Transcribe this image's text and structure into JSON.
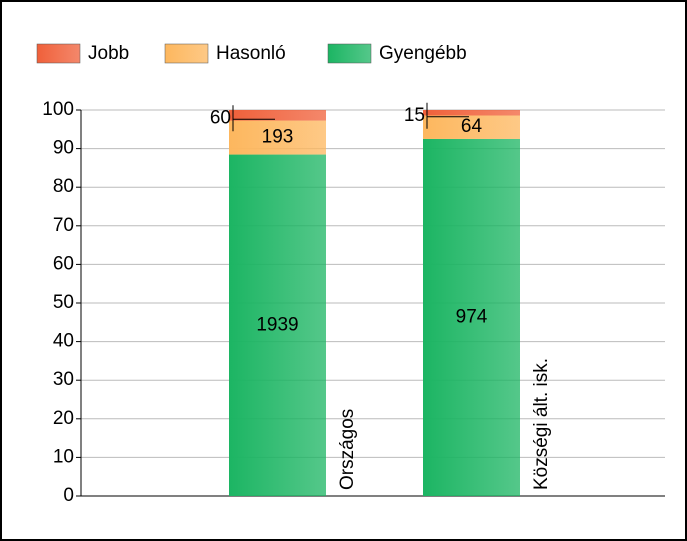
{
  "chart_data": {
    "type": "bar",
    "stacking": "percent",
    "categories": [
      "Országos",
      "Községi ált. isk."
    ],
    "series": [
      {
        "name": "Jobb",
        "color": "#f0603a",
        "values": [
          60,
          15
        ]
      },
      {
        "name": "Hasonló",
        "color": "#fdb75e",
        "values": [
          193,
          64
        ]
      },
      {
        "name": "Gyengébb",
        "color": "#1cb563",
        "values": [
          1939,
          974
        ]
      }
    ],
    "ylim": [
      0,
      100
    ],
    "yticks": [
      0,
      10,
      20,
      30,
      40,
      50,
      60,
      70,
      80,
      90,
      100
    ],
    "grid": true
  }
}
